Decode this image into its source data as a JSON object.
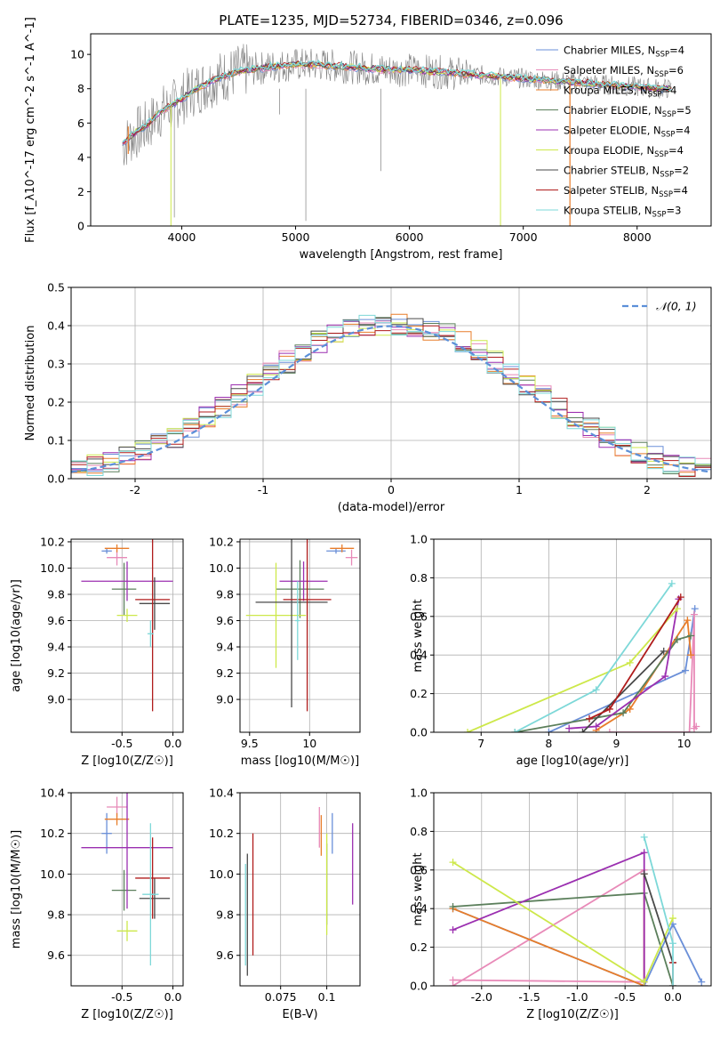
{
  "figure": {
    "title": "PLATE=1235, MJD=52734, FIBERID=0346, z=0.096"
  },
  "models": [
    {
      "name": "Chabrier MILES",
      "nssp": "4",
      "color": "#6a8fd8"
    },
    {
      "name": "Salpeter MILES",
      "nssp": "6",
      "color": "#e88ab8"
    },
    {
      "name": "Kroupa MILES",
      "nssp": "4",
      "color": "#e87d2a"
    },
    {
      "name": "Chabrier ELODIE",
      "nssp": "5",
      "color": "#5b7f5b"
    },
    {
      "name": "Salpeter ELODIE",
      "nssp": "4",
      "color": "#9b2fb0"
    },
    {
      "name": "Kroupa ELODIE",
      "nssp": "4",
      "color": "#cde84a"
    },
    {
      "name": "Chabrier STELIB",
      "nssp": "2",
      "color": "#4a4a4a"
    },
    {
      "name": "Salpeter STELIB",
      "nssp": "4",
      "color": "#b01c1c"
    },
    {
      "name": "Kroupa STELIB",
      "nssp": "3",
      "color": "#7dd8d8"
    }
  ],
  "chart_data": [
    {
      "id": "spectrum",
      "type": "line",
      "xlabel": "wavelength [Angstrom, rest frame]",
      "ylabel": "Flux [f_λ10^-17 erg cm^-2 s^-1 A^-1]",
      "xlim": [
        3200,
        8650
      ],
      "ylim": [
        0,
        11.2
      ],
      "xticks": [
        4000,
        5000,
        6000,
        7000,
        8000
      ],
      "yticks": [
        0,
        2,
        4,
        6,
        8,
        10
      ],
      "data_series": {
        "name": "data",
        "color": "#808080",
        "x": [
          3480,
          3600,
          3700,
          3800,
          3900,
          4000,
          4100,
          4200,
          4300,
          4400,
          4500,
          4600,
          4800,
          5000,
          5200,
          5400,
          5600,
          5800,
          6000,
          6200,
          6400,
          6600,
          6800,
          7000,
          7200,
          7400,
          7600,
          7800,
          8000,
          8200,
          8300
        ],
        "y": [
          4.7,
          5.4,
          5.8,
          6.6,
          6.9,
          7.4,
          7.9,
          8.2,
          8.6,
          8.8,
          9.0,
          9.1,
          9.3,
          9.4,
          9.4,
          9.3,
          9.2,
          9.1,
          9.1,
          9.0,
          8.9,
          8.8,
          8.7,
          8.6,
          8.5,
          8.4,
          8.3,
          8.2,
          8.1,
          8.0,
          8.0
        ]
      },
      "model_curve": {
        "x": [
          3480,
          3600,
          3700,
          3800,
          3900,
          4000,
          4100,
          4200,
          4300,
          4400,
          4500,
          4600,
          4800,
          5000,
          5200,
          5400,
          5600,
          5800,
          6000,
          6200,
          6400,
          6600,
          6800,
          7000,
          7200,
          7400,
          7600,
          7800,
          8000,
          8200,
          8300
        ],
        "y": [
          4.8,
          5.5,
          5.9,
          6.6,
          7.0,
          7.4,
          7.9,
          8.2,
          8.6,
          8.8,
          9.0,
          9.1,
          9.3,
          9.4,
          9.4,
          9.3,
          9.2,
          9.1,
          9.1,
          9.0,
          8.9,
          8.8,
          8.7,
          8.6,
          8.5,
          8.4,
          8.3,
          8.2,
          8.1,
          8.0,
          8.0
        ]
      },
      "legend_position": "upper right"
    },
    {
      "id": "residuals",
      "type": "histogram",
      "xlabel": "(data-model)/error",
      "ylabel": "Normed distribution",
      "xlim": [
        -2.5,
        2.5
      ],
      "ylim": [
        0,
        0.5
      ],
      "xticks": [
        -2,
        -1,
        0,
        1,
        2
      ],
      "yticks": [
        0.0,
        0.1,
        0.2,
        0.3,
        0.4,
        0.5
      ],
      "bin_width": 0.125,
      "reference": {
        "name": "𝒩(0, 1)",
        "mean": 0,
        "sigma": 1,
        "color": "#5b8fd8"
      },
      "legend_position": "upper right"
    },
    {
      "id": "age_vs_Z",
      "type": "errorbar",
      "xlabel": "Z [log10(Z/Z☉)]",
      "ylabel": "age [log10(age/yr)]",
      "xlim": [
        -1.0,
        0.1
      ],
      "ylim": [
        8.75,
        10.22
      ],
      "xticks": [
        -0.5,
        0.0
      ],
      "yticks": [
        9.0,
        9.2,
        9.4,
        9.6,
        9.8,
        10.0,
        10.2
      ],
      "points": [
        {
          "model": 0,
          "x": -0.65,
          "y": 10.13,
          "xerr": 0.05,
          "yerr": 0.02
        },
        {
          "model": 1,
          "x": -0.55,
          "y": 10.08,
          "xerr": 0.1,
          "yerr": 0.06
        },
        {
          "model": 2,
          "x": -0.55,
          "y": 10.15,
          "xerr": 0.12,
          "yerr": 0.03
        },
        {
          "model": 3,
          "x": -0.48,
          "y": 9.84,
          "xerr": 0.12,
          "yerr": 0.2
        },
        {
          "model": 4,
          "x": -0.45,
          "y": 9.9,
          "xerr": 0.45,
          "yerr": 0.15
        },
        {
          "model": 5,
          "x": -0.45,
          "y": 9.64,
          "xerr": 0.1,
          "yerr": 0.05
        },
        {
          "model": 6,
          "x": -0.18,
          "y": 9.73,
          "xerr": 0.15,
          "yerr": 0.2
        },
        {
          "model": 7,
          "x": -0.2,
          "y": 9.76,
          "xerr": 0.17,
          "yerr": 0.85
        },
        {
          "model": 8,
          "x": -0.22,
          "y": 9.5,
          "xerr": 0.03,
          "yerr": 0.1
        }
      ]
    },
    {
      "id": "age_vs_mass",
      "type": "errorbar",
      "xlabel": "mass [log10(M/M☉)]",
      "ylabel": "",
      "xlim": [
        9.42,
        10.42
      ],
      "ylim": [
        8.75,
        10.22
      ],
      "xticks": [
        9.5,
        10.0
      ],
      "yticks": [
        9.0,
        9.2,
        9.4,
        9.6,
        9.8,
        10.0,
        10.2
      ],
      "points": [
        {
          "model": 0,
          "x": 10.22,
          "y": 10.13,
          "xerr": 0.08,
          "yerr": 0.02
        },
        {
          "model": 1,
          "x": 10.35,
          "y": 10.08,
          "xerr": 0.05,
          "yerr": 0.06
        },
        {
          "model": 2,
          "x": 10.27,
          "y": 10.15,
          "xerr": 0.1,
          "yerr": 0.03
        },
        {
          "model": 3,
          "x": 9.92,
          "y": 9.84,
          "xerr": 0.2,
          "yerr": 0.22
        },
        {
          "model": 4,
          "x": 9.95,
          "y": 9.9,
          "xerr": 0.2,
          "yerr": 0.15
        },
        {
          "model": 5,
          "x": 9.72,
          "y": 9.64,
          "xerr": 0.25,
          "yerr": 0.4
        },
        {
          "model": 6,
          "x": 9.85,
          "y": 9.74,
          "xerr": 0.3,
          "yerr": 0.8
        },
        {
          "model": 7,
          "x": 9.98,
          "y": 9.76,
          "xerr": 0.2,
          "yerr": 0.85
        },
        {
          "model": 8,
          "x": 9.9,
          "y": 9.6,
          "xerr": 0.02,
          "yerr": 0.3
        }
      ]
    },
    {
      "id": "weight_vs_age",
      "type": "line",
      "xlabel": "age [log10(age/yr)]",
      "ylabel": "mass weight",
      "xlim": [
        6.3,
        10.4
      ],
      "ylim": [
        0,
        1.0
      ],
      "xticks": [
        7,
        8,
        9,
        10
      ],
      "yticks": [
        0.0,
        0.2,
        0.4,
        0.6,
        0.8,
        1.0
      ],
      "series": [
        {
          "model": 0,
          "x": [
            8.0,
            10.02,
            10.16
          ],
          "y": [
            0.0,
            0.32,
            0.64
          ]
        },
        {
          "model": 1,
          "x": [
            8.9,
            10.08,
            10.15,
            10.15,
            10.18
          ],
          "y": [
            0.0,
            0.0,
            0.61,
            0.02,
            0.03
          ]
        },
        {
          "model": 2,
          "x": [
            8.7,
            9.2,
            10.05,
            10.1
          ],
          "y": [
            0.01,
            0.12,
            0.58,
            0.4
          ]
        },
        {
          "model": 3,
          "x": [
            7.5,
            9.1,
            9.9,
            10.1
          ],
          "y": [
            0.0,
            0.1,
            0.48,
            0.5
          ]
        },
        {
          "model": 4,
          "x": [
            8.3,
            8.7,
            9.72,
            9.92
          ],
          "y": [
            0.02,
            0.03,
            0.29,
            0.69
          ]
        },
        {
          "model": 5,
          "x": [
            6.8,
            9.2,
            9.9
          ],
          "y": [
            0.0,
            0.36,
            0.64
          ]
        },
        {
          "model": 6,
          "x": [
            8.5,
            9.7
          ],
          "y": [
            0.0,
            0.42
          ]
        },
        {
          "model": 7,
          "x": [
            8.6,
            8.9,
            9.95
          ],
          "y": [
            0.07,
            0.12,
            0.7
          ]
        },
        {
          "model": 8,
          "x": [
            7.5,
            8.7,
            9.82
          ],
          "y": [
            0.0,
            0.22,
            0.77
          ]
        }
      ]
    },
    {
      "id": "mass_vs_Z",
      "type": "errorbar",
      "xlabel": "Z [log10(Z/Z☉)]",
      "ylabel": "mass [log10(M/M☉)]",
      "xlim": [
        -1.0,
        0.1
      ],
      "ylim": [
        9.45,
        10.4
      ],
      "xticks": [
        -0.5,
        0.0
      ],
      "yticks": [
        9.6,
        9.8,
        10.0,
        10.2,
        10.4
      ],
      "points": [
        {
          "model": 0,
          "x": -0.65,
          "y": 10.2,
          "xerr": 0.05,
          "yerr": 0.1
        },
        {
          "model": 1,
          "x": -0.55,
          "y": 10.33,
          "xerr": 0.1,
          "yerr": 0.05
        },
        {
          "model": 2,
          "x": -0.55,
          "y": 10.27,
          "xerr": 0.12,
          "yerr": 0.03
        },
        {
          "model": 3,
          "x": -0.48,
          "y": 9.92,
          "xerr": 0.12,
          "yerr": 0.1
        },
        {
          "model": 4,
          "x": -0.45,
          "y": 10.13,
          "xerr": 0.45,
          "yerr": 0.3
        },
        {
          "model": 5,
          "x": -0.45,
          "y": 9.72,
          "xerr": 0.1,
          "yerr": 0.05
        },
        {
          "model": 6,
          "x": -0.18,
          "y": 9.88,
          "xerr": 0.15,
          "yerr": 0.1
        },
        {
          "model": 7,
          "x": -0.2,
          "y": 9.98,
          "xerr": 0.17,
          "yerr": 0.2
        },
        {
          "model": 8,
          "x": -0.22,
          "y": 9.9,
          "xerr": 0.08,
          "yerr": 0.35
        }
      ]
    },
    {
      "id": "mass_vs_ebv",
      "type": "errorbar",
      "xlabel": "E(B-V)",
      "ylabel": "",
      "xlim": [
        0.053,
        0.118
      ],
      "ylim": [
        9.45,
        10.4
      ],
      "xticks": [
        0.075,
        0.1
      ],
      "yticks": [
        9.6,
        9.8,
        10.0,
        10.2,
        10.4
      ],
      "points": [
        {
          "model": 0,
          "x": 0.103,
          "y": 10.2,
          "xerr": 0,
          "yerr": 0.1
        },
        {
          "model": 1,
          "x": 0.096,
          "y": 10.23,
          "xerr": 0,
          "yerr": 0.1
        },
        {
          "model": 2,
          "x": 0.097,
          "y": 10.19,
          "xerr": 0,
          "yerr": 0.1
        },
        {
          "model": 3,
          "x": 0.1,
          "y": 9.95,
          "xerr": 0,
          "yerr": 0.2
        },
        {
          "model": 4,
          "x": 0.114,
          "y": 10.05,
          "xerr": 0,
          "yerr": 0.2
        },
        {
          "model": 5,
          "x": 0.1,
          "y": 9.95,
          "xerr": 0,
          "yerr": 0.25
        },
        {
          "model": 6,
          "x": 0.057,
          "y": 9.8,
          "xerr": 0,
          "yerr": 0.3
        },
        {
          "model": 7,
          "x": 0.06,
          "y": 9.9,
          "xerr": 0,
          "yerr": 0.3
        },
        {
          "model": 8,
          "x": 0.056,
          "y": 9.8,
          "xerr": 0,
          "yerr": 0.25
        }
      ]
    },
    {
      "id": "weight_vs_Z",
      "type": "line",
      "xlabel": "Z [log10(Z/Z☉)]",
      "ylabel": "mass weight",
      "xlim": [
        -2.5,
        0.4
      ],
      "ylim": [
        0,
        1.0
      ],
      "xticks": [
        -2.0,
        -1.5,
        -1.0,
        -0.5,
        0.0
      ],
      "yticks": [
        0.0,
        0.2,
        0.4,
        0.6,
        0.8,
        1.0
      ],
      "series": [
        {
          "model": 0,
          "x": [
            -2.3,
            -0.3,
            0.0,
            0.3
          ],
          "y": [
            0.4,
            0.0,
            0.32,
            0.02
          ]
        },
        {
          "model": 1,
          "x": [
            -2.3,
            -0.3,
            -0.3,
            -2.3
          ],
          "y": [
            0.03,
            0.02,
            0.6,
            0.0
          ]
        },
        {
          "model": 2,
          "x": [
            -2.3,
            -0.3,
            -0.3
          ],
          "y": [
            0.4,
            0.0,
            0.58
          ]
        },
        {
          "model": 3,
          "x": [
            -2.3,
            -0.3,
            0.0
          ],
          "y": [
            0.41,
            0.48,
            0.0
          ]
        },
        {
          "model": 4,
          "x": [
            -2.3,
            -0.3,
            -0.3
          ],
          "y": [
            0.29,
            0.69,
            0.0
          ]
        },
        {
          "model": 5,
          "x": [
            -2.3,
            -0.3,
            0.0
          ],
          "y": [
            0.64,
            0.02,
            0.35
          ]
        },
        {
          "model": 6,
          "x": [
            -0.3,
            0.0
          ],
          "y": [
            0.58,
            0.12
          ]
        },
        {
          "model": 7,
          "x": [
            0.0,
            0.0
          ],
          "y": [
            0.12,
            0.0
          ]
        },
        {
          "model": 8,
          "x": [
            -0.3,
            0.0,
            0.0
          ],
          "y": [
            0.77,
            0.22,
            0.0
          ]
        }
      ]
    }
  ]
}
